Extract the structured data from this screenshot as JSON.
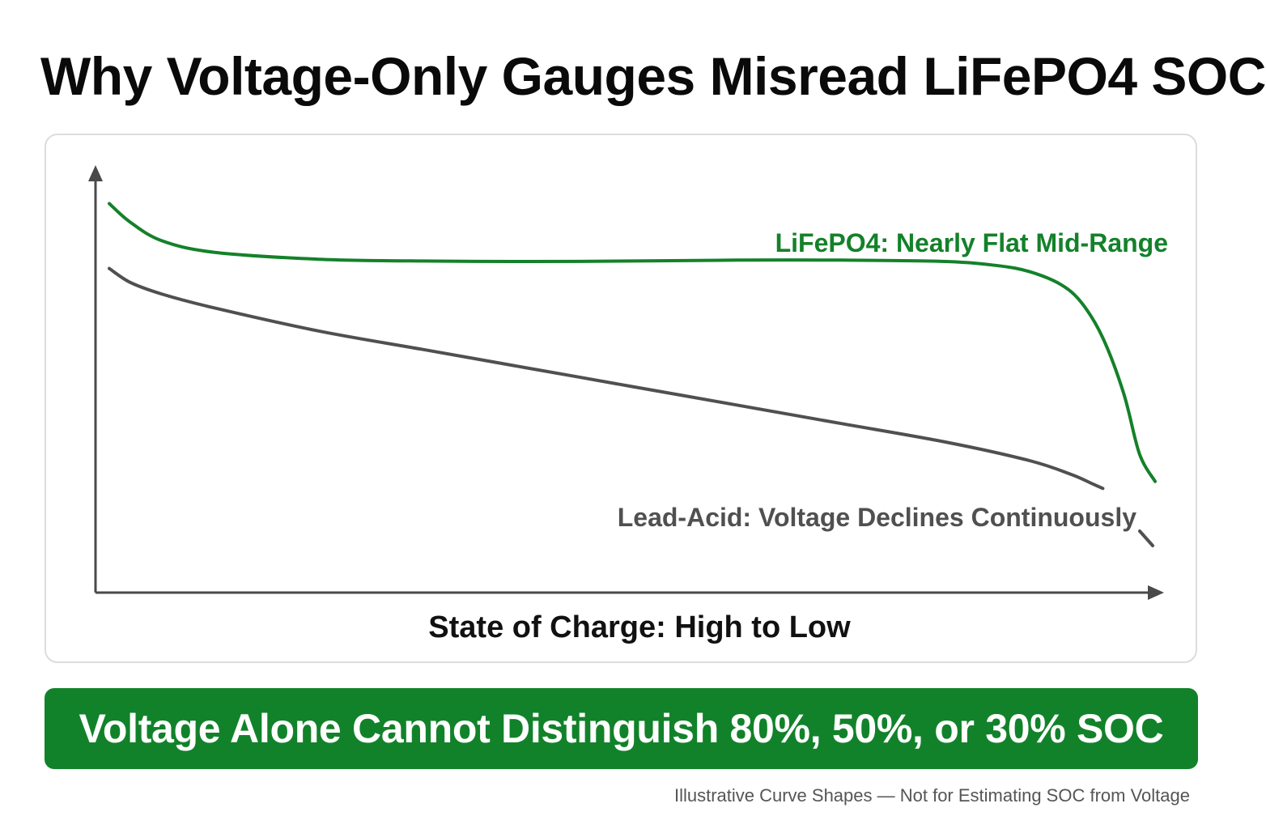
{
  "title": "Why Voltage-Only Gauges Misread LiFePO4 SOC",
  "banner": {
    "text": "Voltage Alone Cannot Distinguish 80%, 50%, or 30% SOC"
  },
  "footnote": "Illustrative Curve Shapes — Not for Estimating SOC from Voltage",
  "colors": {
    "lifepo4": "#14812a",
    "lead_acid": "#505050",
    "axis": "#4a4a4a",
    "banner_bg": "#12822a"
  },
  "chart_data": {
    "type": "line",
    "title": "Why Voltage-Only Gauges Misread LiFePO4 SOC",
    "xlabel": "State of Charge: High to Low",
    "ylabel": "",
    "grid": false,
    "x_direction": "high-to-low",
    "axis_ticks": false,
    "series": [
      {
        "name": "LiFePO4: Nearly Flat Mid-Range",
        "color": "#14812a",
        "x": [
          0,
          2,
          5,
          10,
          20,
          30,
          40,
          50,
          60,
          70,
          80,
          85,
          88,
          91,
          93,
          95,
          97,
          98.5,
          100
        ],
        "y": [
          84,
          80,
          76,
          73.5,
          72,
          71.6,
          71.5,
          71.6,
          71.8,
          71.8,
          71.5,
          70.6,
          69.3,
          66.5,
          62.5,
          55,
          43,
          30,
          24
        ]
      },
      {
        "name": "Lead-Acid: Voltage Declines Continuously",
        "color": "#505050",
        "x": [
          0,
          2,
          5,
          10,
          20,
          30,
          40,
          50,
          60,
          70,
          80,
          88,
          92,
          94,
          95
        ],
        "y": [
          70,
          67,
          64.5,
          61.5,
          56.5,
          52.5,
          48.5,
          44.5,
          40.5,
          36.5,
          32.5,
          28.5,
          25.5,
          23.5,
          22.5
        ]
      }
    ]
  }
}
